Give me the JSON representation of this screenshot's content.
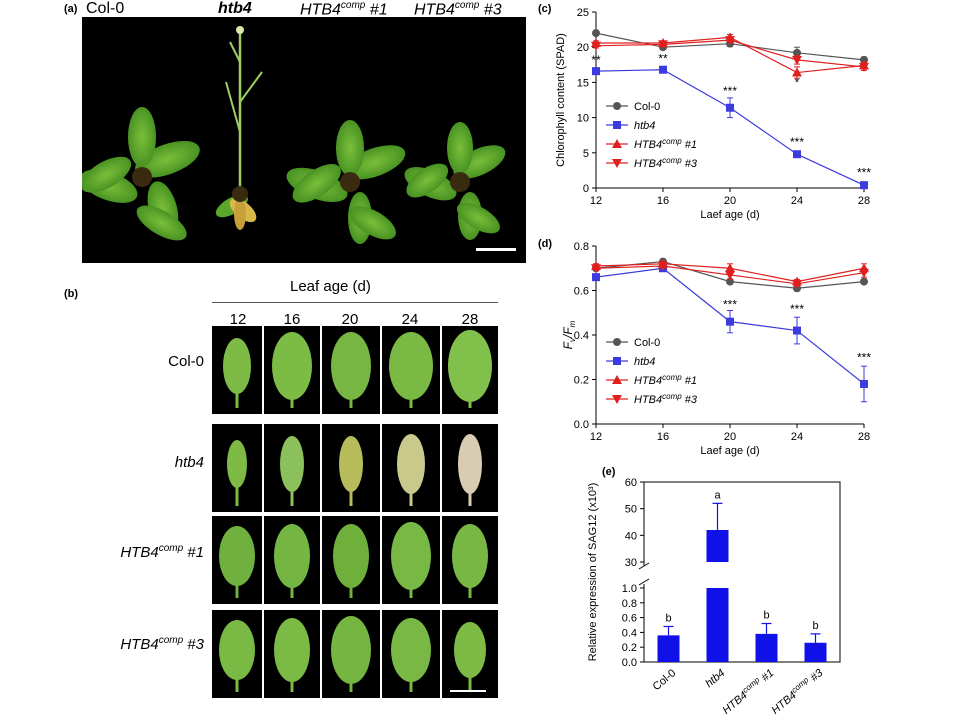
{
  "panels": {
    "a": {
      "label": "(a)",
      "genotypes": [
        "Col-0",
        "htb4",
        "HTB4",
        "comp",
        " #1",
        "HTB4",
        "comp",
        " #3"
      ]
    },
    "b": {
      "label": "(b)",
      "title": "Leaf age (d)",
      "ages": [
        "12",
        "16",
        "20",
        "24",
        "28"
      ],
      "rows": [
        {
          "base": "Col-0",
          "sup": "",
          "suffix": "",
          "italic": false
        },
        {
          "base": "htb4",
          "sup": "",
          "suffix": "",
          "italic": true
        },
        {
          "base": "HTB4",
          "sup": "comp",
          "suffix": " #1",
          "italic": true
        },
        {
          "base": "HTB4",
          "sup": "comp",
          "suffix": " #3",
          "italic": true
        }
      ]
    },
    "c": {
      "label": "(c)"
    },
    "d": {
      "label": "(d)"
    },
    "e": {
      "label": "(e)"
    }
  },
  "chart_data": [
    {
      "id": "c",
      "type": "line",
      "x": [
        12,
        16,
        20,
        24,
        28
      ],
      "xlabel": "Laef age (d)",
      "ylabel": "Chlorophyll content (SPAD)",
      "xlim": [
        12,
        28
      ],
      "ylim": [
        0,
        25
      ],
      "yticks": [
        0,
        5,
        10,
        15,
        20,
        25
      ],
      "series": [
        {
          "name": "Col-0",
          "color": "#555555",
          "marker": "circle",
          "values": [
            22.0,
            20.0,
            20.5,
            19.2,
            18.2
          ],
          "errors": [
            0.3,
            0.3,
            0.4,
            0.8,
            0.4
          ]
        },
        {
          "name": "htb4",
          "color": "#3b3bdf",
          "marker": "square",
          "values": [
            16.6,
            16.8,
            11.4,
            4.8,
            0.4
          ],
          "errors": [
            0.3,
            0.3,
            1.4,
            0.3,
            0.2
          ]
        },
        {
          "name": "HTB4comp #1",
          "color": "#e02020",
          "marker": "triangle-up",
          "values": [
            20.6,
            20.6,
            21.4,
            16.4,
            17.4
          ],
          "errors": [
            0.3,
            0.3,
            0.4,
            0.8,
            0.5
          ]
        },
        {
          "name": "HTB4comp #3",
          "color": "#e02020",
          "marker": "triangle-down",
          "values": [
            20.2,
            20.4,
            21.0,
            18.2,
            17.2
          ],
          "errors": [
            0.3,
            0.3,
            0.4,
            0.6,
            0.5
          ]
        }
      ],
      "annotations": [
        {
          "x": 12,
          "y": 17.6,
          "text": "**"
        },
        {
          "x": 16,
          "y": 17.8,
          "text": "**"
        },
        {
          "x": 20,
          "y": 13.2,
          "text": "***"
        },
        {
          "x": 24,
          "y": 6.0,
          "text": "***"
        },
        {
          "x": 24,
          "y": 14.4,
          "text": "*"
        },
        {
          "x": 28,
          "y": 1.6,
          "text": "***"
        }
      ],
      "legend": {
        "placement": "bottom-left"
      }
    },
    {
      "id": "d",
      "type": "line",
      "x": [
        12,
        16,
        20,
        24,
        28
      ],
      "xlabel": "Laef age (d)",
      "ylabel": "Fv/Fm",
      "xlim": [
        12,
        28
      ],
      "ylim": [
        0.0,
        0.8
      ],
      "yticks": [
        0.0,
        0.2,
        0.4,
        0.6,
        0.8
      ],
      "series": [
        {
          "name": "Col-0",
          "color": "#555555",
          "marker": "circle",
          "values": [
            0.7,
            0.73,
            0.64,
            0.61,
            0.64
          ],
          "errors": [
            0.01,
            0.01,
            0.01,
            0.01,
            0.01
          ]
        },
        {
          "name": "htb4",
          "color": "#3b3bdf",
          "marker": "square",
          "values": [
            0.66,
            0.7,
            0.46,
            0.42,
            0.18
          ],
          "errors": [
            0.01,
            0.01,
            0.05,
            0.06,
            0.08
          ]
        },
        {
          "name": "HTB4comp #1",
          "color": "#e02020",
          "marker": "triangle-up",
          "values": [
            0.71,
            0.72,
            0.7,
            0.64,
            0.7
          ],
          "errors": [
            0.01,
            0.01,
            0.02,
            0.01,
            0.02
          ]
        },
        {
          "name": "HTB4comp #3",
          "color": "#e02020",
          "marker": "triangle-down",
          "values": [
            0.7,
            0.71,
            0.67,
            0.63,
            0.68
          ],
          "errors": [
            0.01,
            0.01,
            0.02,
            0.01,
            0.02
          ]
        }
      ],
      "annotations": [
        {
          "x": 20,
          "y": 0.52,
          "text": "***"
        },
        {
          "x": 24,
          "y": 0.5,
          "text": "***"
        },
        {
          "x": 28,
          "y": 0.28,
          "text": "***"
        }
      ],
      "legend": {
        "placement": "bottom-left"
      }
    },
    {
      "id": "e",
      "type": "bar",
      "categories": [
        "Col-0",
        "htb4",
        "HTB4comp #1",
        "HTB4comp #3"
      ],
      "values": [
        0.36,
        42.0,
        0.38,
        0.26
      ],
      "errors": [
        0.12,
        10.0,
        0.14,
        0.12
      ],
      "letters": [
        "b",
        "a",
        "b",
        "b"
      ],
      "ylabel": "Relative expression of SAG12 (x10³)",
      "color": "#1010e8",
      "broken_axis": {
        "lower": [
          0,
          1.0
        ],
        "upper": [
          30,
          60
        ]
      },
      "lower_ticks": [
        0.0,
        0.2,
        0.4,
        0.6,
        0.8,
        1.0
      ],
      "upper_ticks": [
        30,
        40,
        50,
        60
      ]
    }
  ]
}
